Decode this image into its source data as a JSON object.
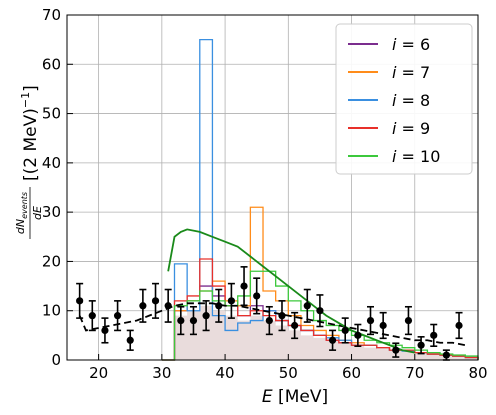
{
  "chart_data": {
    "type": "step-histogram",
    "xlabel": "E [MeV]",
    "ylabel": "dN_events/dE [(2 MeV)^-1]",
    "xlim": [
      15,
      80
    ],
    "ylim": [
      0,
      70
    ],
    "xticks": [
      20,
      30,
      40,
      50,
      60,
      70,
      80
    ],
    "yticks": [
      0,
      10,
      20,
      30,
      40,
      50,
      60,
      70
    ],
    "grid": true,
    "legend_position": "top-right",
    "bin_edges": [
      30,
      32,
      34,
      36,
      38,
      40,
      42,
      44,
      46,
      48,
      50,
      52,
      54,
      56,
      58,
      60,
      62,
      64,
      66,
      68,
      70,
      72,
      74,
      76,
      78,
      80
    ],
    "series": [
      {
        "name": "i = 6",
        "color": "#7b2d8e",
        "values": [
          0,
          10,
          12,
          15,
          13,
          11,
          9,
          11,
          10,
          8,
          7,
          6,
          5,
          4,
          3.5,
          3,
          3,
          2.5,
          2,
          2,
          1.5,
          1.2,
          1,
          0.8,
          0.5
        ]
      },
      {
        "name": "i = 7",
        "color": "#ff8c1a",
        "values": [
          0,
          10,
          12,
          14,
          16,
          12,
          11,
          31,
          14,
          12,
          9,
          7,
          6,
          5,
          4,
          3.5,
          3,
          2.5,
          2,
          2,
          1.5,
          1.2,
          1,
          0.8,
          0.5
        ]
      },
      {
        "name": "i = 8",
        "color": "#3a8fe0",
        "values": [
          0,
          19.5,
          10,
          65,
          9,
          6,
          7.5,
          8,
          10,
          8,
          7,
          6,
          5,
          4.5,
          4,
          3,
          3,
          2.5,
          2,
          1.8,
          1.5,
          1.2,
          1,
          0.8,
          0.5
        ]
      },
      {
        "name": "i = 9",
        "color": "#e8302a",
        "values": [
          0,
          12,
          13,
          20.5,
          15,
          11,
          9,
          10,
          9,
          8,
          7,
          6,
          5,
          4,
          3.5,
          3,
          3,
          2.5,
          2,
          2,
          1.5,
          1.2,
          1,
          0.8,
          0.5
        ]
      },
      {
        "name": "i = 10",
        "color": "#3cc83c",
        "values": [
          0,
          11,
          12,
          14,
          12,
          11,
          13,
          18,
          18,
          15,
          12,
          10,
          8,
          7,
          6,
          5,
          4,
          3.5,
          3,
          2.5,
          2,
          1.5,
          1.2,
          1,
          0.8
        ]
      }
    ],
    "fill": {
      "color": "#e9dcdc",
      "values": [
        0,
        9,
        10,
        11,
        10,
        9,
        8,
        9,
        8,
        7,
        6,
        5,
        4.5,
        4,
        3.5,
        3,
        2.5,
        2.2,
        2,
        1.8,
        1.5,
        1.2,
        1,
        0.8,
        0.5
      ]
    },
    "green_curve": {
      "color": "#1a8a1a",
      "x": [
        31,
        32,
        33,
        34,
        36,
        38,
        40,
        42,
        44,
        46,
        48,
        50,
        52,
        54,
        56,
        58,
        60,
        62,
        64,
        66,
        68,
        70
      ],
      "y": [
        18,
        25,
        26,
        26.5,
        26,
        25,
        24,
        23,
        21,
        19,
        17,
        15,
        13,
        11,
        9,
        7.5,
        6,
        5,
        4,
        3,
        2,
        1.5
      ]
    },
    "dashed_curve": {
      "color": "#000000",
      "x": [
        17,
        18,
        20,
        22,
        24,
        26,
        28,
        30,
        32,
        34,
        36,
        38,
        40,
        42,
        44,
        46,
        48,
        50,
        52,
        54,
        56,
        58,
        60,
        62,
        64,
        66,
        68,
        70,
        72,
        74,
        76,
        78
      ],
      "y": [
        9,
        6,
        6.5,
        7,
        7.5,
        8,
        9,
        10,
        11,
        11.5,
        11.5,
        11.5,
        11,
        11,
        10.5,
        10,
        9.5,
        9,
        8.5,
        8,
        7.5,
        7,
        6.5,
        6,
        5.5,
        5,
        4.5,
        4,
        4,
        3.5,
        3.5,
        3
      ]
    },
    "data_points": {
      "color": "#000000",
      "x": [
        17,
        19,
        21,
        23,
        25,
        27,
        29,
        31,
        33,
        35,
        37,
        39,
        41,
        43,
        45,
        47,
        49,
        51,
        53,
        55,
        57,
        59,
        61,
        63,
        65,
        67,
        69,
        71,
        73,
        75,
        77
      ],
      "y": [
        12,
        9,
        6,
        9,
        4,
        11,
        12,
        11,
        8,
        8,
        9,
        11,
        12,
        15,
        13,
        8,
        9,
        7,
        11,
        10,
        4,
        6,
        5,
        8,
        7,
        2,
        8,
        3,
        5,
        1,
        7
      ],
      "err": [
        3.5,
        3,
        2.5,
        3,
        2,
        3.3,
        3.5,
        3.3,
        2.8,
        2.8,
        3,
        3.3,
        3.5,
        3.9,
        3.6,
        2.8,
        3,
        2.6,
        3.3,
        3.2,
        2,
        2.5,
        2.2,
        2.8,
        2.6,
        1.4,
        2.8,
        1.7,
        2.2,
        1,
        2.6
      ]
    }
  }
}
